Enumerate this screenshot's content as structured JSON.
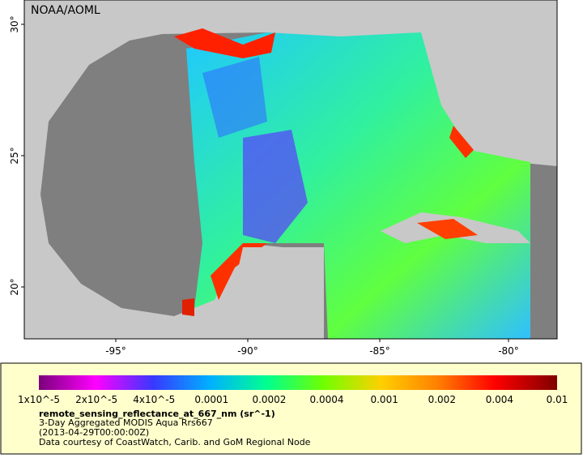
{
  "header": {
    "credit": "NOAA/AOML"
  },
  "map": {
    "lat_labels": [
      "30°",
      "25°",
      "20°"
    ],
    "lon_labels": [
      "-95°",
      "-90°",
      "-85°",
      "-80°"
    ]
  },
  "legend": {
    "colorbar_labels": [
      "1x10^-5",
      "2x10^-5",
      "4x10^-5",
      "0.0001",
      "0.0002",
      "0.0004",
      "0.001",
      "0.002",
      "0.004",
      "0.01"
    ],
    "title": "remote_sensing_reflectance_at_667_nm (sr^-1)",
    "lines": [
      "3-Day Aggregated MODIS Aqua Rrs667",
      "(2013-04-29T00:00:00Z)",
      "Data courtesy of CoastWatch, Carib. and GoM Regional Node"
    ]
  }
}
